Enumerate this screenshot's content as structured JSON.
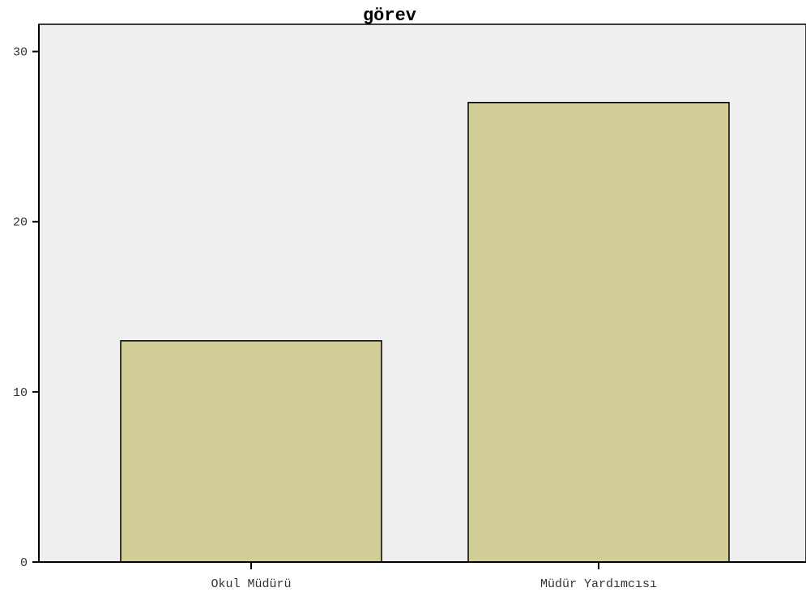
{
  "chart_data": {
    "type": "bar",
    "title": "görev",
    "xlabel": "",
    "ylabel": "",
    "categories": [
      "Okul Müdürü",
      "Müdür Yardımcısı"
    ],
    "values": [
      13,
      27
    ],
    "ylim": [
      0,
      31.6
    ],
    "yticks": [
      0,
      10,
      20,
      30
    ],
    "grid": false,
    "legend": "none",
    "colors": {
      "plot_background": "#efefef",
      "bar_fill": "#d3cd98",
      "bar_stroke": "#000000",
      "axis": "#000000"
    }
  }
}
